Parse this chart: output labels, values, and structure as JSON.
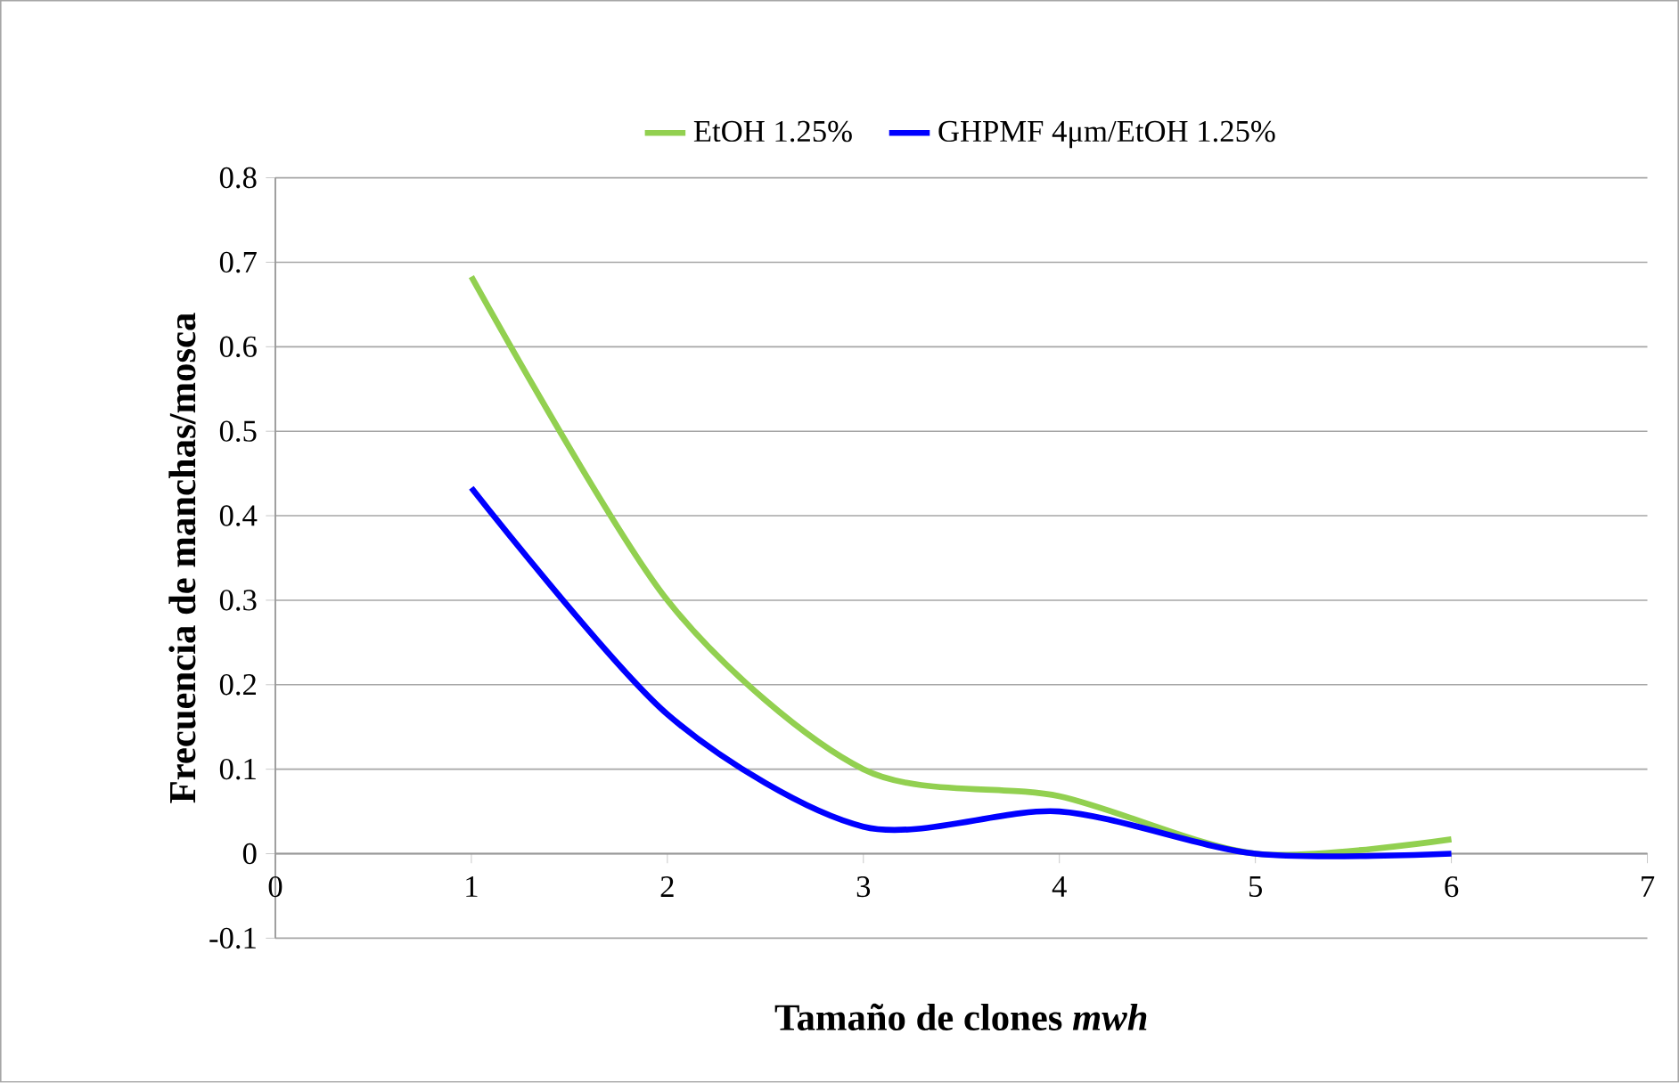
{
  "chart_data": {
    "type": "line",
    "xlabel": "Tamaño de clones *mwh*",
    "ylabel": "Frecuencia de manchas/mosca",
    "x": [
      1,
      2,
      3,
      4,
      5,
      6
    ],
    "series": [
      {
        "name": "EtOH 1.25%",
        "color": "#92d050",
        "values": [
          0.683,
          0.3,
          0.1,
          0.068,
          0.0,
          0.017
        ]
      },
      {
        "name": "GHPMF 4μm/EtOH 1.25%",
        "color": "#0000ff",
        "values": [
          0.433,
          0.165,
          0.032,
          0.05,
          0.0,
          0.0
        ]
      }
    ],
    "xlim": [
      0,
      7
    ],
    "xticks": [
      0,
      1,
      2,
      3,
      4,
      5,
      6,
      7
    ],
    "ylim": [
      -0.1,
      0.8
    ],
    "yticks": [
      -0.1,
      0,
      0.1,
      0.2,
      0.3,
      0.4,
      0.5,
      0.6,
      0.7,
      0.8
    ],
    "grid": "y",
    "legend": "top",
    "marker": "none",
    "line_style": "solid"
  }
}
